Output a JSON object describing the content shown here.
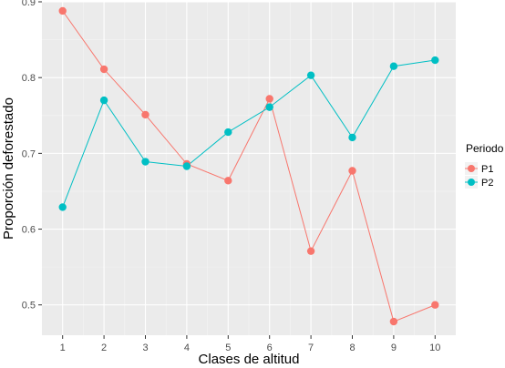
{
  "chart_data": {
    "type": "line",
    "xlabel": "Clases de altitud",
    "ylabel": "Proporción deforestado",
    "x": [
      1,
      2,
      3,
      4,
      5,
      6,
      7,
      8,
      9,
      10
    ],
    "xlim": [
      0.5,
      10.5
    ],
    "ylim": [
      0.46,
      0.9
    ],
    "xticks": [
      "1",
      "2",
      "3",
      "4",
      "5",
      "6",
      "7",
      "8",
      "9",
      "10"
    ],
    "yticks": [
      0.5,
      0.6,
      0.7,
      0.8,
      0.9
    ],
    "ytick_labels": [
      "0.5",
      "0.6",
      "0.7",
      "0.8",
      "0.9"
    ],
    "grid": true,
    "legend_title": "Periodo",
    "legend_position": "right",
    "series": [
      {
        "name": "P1",
        "color": "#F8766D",
        "values": [
          0.888,
          0.811,
          0.751,
          0.686,
          0.664,
          0.772,
          0.571,
          0.677,
          0.478,
          0.5
        ]
      },
      {
        "name": "P2",
        "color": "#00BFC4",
        "values": [
          0.629,
          0.77,
          0.689,
          0.683,
          0.728,
          0.761,
          0.803,
          0.721,
          0.815,
          0.823
        ]
      }
    ]
  }
}
